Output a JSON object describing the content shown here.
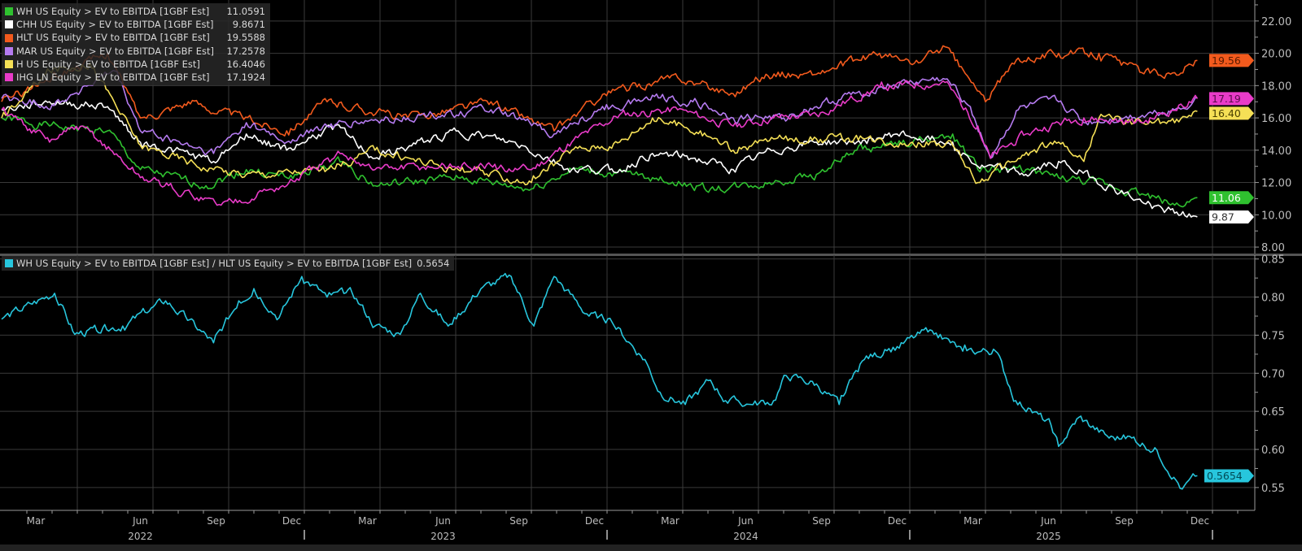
{
  "colors": {
    "WH": "#2fc12f",
    "CHH": "#ffffff",
    "HLT": "#f25a1d",
    "MAR": "#b57bf0",
    "H": "#f5e056",
    "IHG": "#e93bc8",
    "ratio": "#27c6dd",
    "grid": "#3a3a3a",
    "axis": "#9a9a9a"
  },
  "chart_data": [
    {
      "type": "line",
      "title": "EV to EBITDA [1GBF Est]",
      "time_unit": "months since Jan 2022",
      "ylim": [
        7.6,
        23.3
      ],
      "yticks": [
        8,
        10,
        12,
        14,
        16,
        18,
        20,
        22
      ],
      "ytick_labels": [
        "8.00",
        "10.00",
        "12.00",
        "14.00",
        "16.00",
        "18.00",
        "20.00",
        "22.00"
      ],
      "grid": true,
      "legend_placement": "top-left",
      "series": [
        {
          "key": "WH",
          "name": "WH US Equity > EV to EBITDA [1GBF Est]",
          "last": "11.0591",
          "tag": "11.06",
          "tag_text": "#ffffff",
          "points": [
            [
              0,
              16
            ],
            [
              1.9,
              15.5
            ],
            [
              4.2,
              15.2
            ],
            [
              5.5,
              12.8
            ],
            [
              8.1,
              11.8
            ],
            [
              9.7,
              12.8
            ],
            [
              11.3,
              12.3
            ],
            [
              13.5,
              13.3
            ],
            [
              14.8,
              11.8
            ],
            [
              18.1,
              12.3
            ],
            [
              21,
              11.6
            ],
            [
              22.6,
              12.8
            ],
            [
              25.8,
              12.3
            ],
            [
              28.1,
              11.6
            ],
            [
              29.7,
              11.8
            ],
            [
              32.3,
              12.5
            ],
            [
              33.9,
              14
            ],
            [
              35.5,
              14.3
            ],
            [
              37.7,
              15
            ],
            [
              38.7,
              12.8
            ],
            [
              40.6,
              12.8
            ],
            [
              41.9,
              12.3
            ],
            [
              43.9,
              11.8
            ],
            [
              45.2,
              11.3
            ],
            [
              46.5,
              10.6
            ],
            [
              47.4,
              11.06
            ]
          ]
        },
        {
          "key": "CHH",
          "name": "CHH US Equity > EV to EBITDA [1GBF Est]",
          "last": "9.8671",
          "tag": "9.87",
          "tag_text": "#333333",
          "points": [
            [
              0,
              16.5
            ],
            [
              1.9,
              17
            ],
            [
              4.2,
              16.7
            ],
            [
              5.5,
              14.5
            ],
            [
              8.4,
              13.3
            ],
            [
              9.7,
              15
            ],
            [
              11.3,
              14
            ],
            [
              13.2,
              15.5
            ],
            [
              14.8,
              13.5
            ],
            [
              18.1,
              15.2
            ],
            [
              20.6,
              14.3
            ],
            [
              22.6,
              12.8
            ],
            [
              24.5,
              12.8
            ],
            [
              25.8,
              13.8
            ],
            [
              27.4,
              13.5
            ],
            [
              29,
              12.8
            ],
            [
              30.6,
              14
            ],
            [
              32.3,
              14.5
            ],
            [
              33.9,
              14.5
            ],
            [
              35.5,
              15
            ],
            [
              37.7,
              14.5
            ],
            [
              38.7,
              13
            ],
            [
              40.6,
              12.5
            ],
            [
              41.9,
              13.3
            ],
            [
              43.2,
              12.3
            ],
            [
              45.2,
              10.8
            ],
            [
              46.5,
              10.1
            ],
            [
              47.4,
              9.87
            ]
          ]
        },
        {
          "key": "HLT",
          "name": "HLT US Equity > EV to EBITDA [1GBF Est]",
          "last": "19.5588",
          "tag": "19.56",
          "tag_text": "#5a1a00",
          "points": [
            [
              0,
              17
            ],
            [
              2,
              18.5
            ],
            [
              4.2,
              20
            ],
            [
              5.5,
              16
            ],
            [
              7.4,
              17
            ],
            [
              11.3,
              15.2
            ],
            [
              12.9,
              17
            ],
            [
              16.1,
              16
            ],
            [
              19.4,
              17
            ],
            [
              21.9,
              15.2
            ],
            [
              23.9,
              17.5
            ],
            [
              26.8,
              18.5
            ],
            [
              29,
              17.5
            ],
            [
              30.3,
              18.7
            ],
            [
              32.3,
              18.7
            ],
            [
              34.8,
              20
            ],
            [
              36.1,
              19.3
            ],
            [
              37.4,
              20.4
            ],
            [
              39,
              17
            ],
            [
              40.3,
              19.7
            ],
            [
              41.9,
              20
            ],
            [
              43.5,
              20
            ],
            [
              45.2,
              18.8
            ],
            [
              46.5,
              18.8
            ],
            [
              47.4,
              19.56
            ]
          ]
        },
        {
          "key": "MAR",
          "name": "MAR US Equity > EV to EBITDA [1GBF Est]",
          "last": "17.2578",
          "tag": null,
          "points": [
            [
              0,
              17.2
            ],
            [
              2,
              16.8
            ],
            [
              4.5,
              18.9
            ],
            [
              5.5,
              15.2
            ],
            [
              8.4,
              13.8
            ],
            [
              9.7,
              15.7
            ],
            [
              11.3,
              14.5
            ],
            [
              12.9,
              15.5
            ],
            [
              16.1,
              16
            ],
            [
              19.4,
              16.5
            ],
            [
              21.9,
              15
            ],
            [
              23.9,
              16.5
            ],
            [
              25.8,
              17.4
            ],
            [
              27.4,
              17
            ],
            [
              29,
              16
            ],
            [
              31,
              16
            ],
            [
              32.3,
              16.7
            ],
            [
              34.8,
              17.9
            ],
            [
              37.4,
              18.4
            ],
            [
              38.4,
              16.7
            ],
            [
              39.2,
              13.5
            ],
            [
              40.3,
              16.5
            ],
            [
              41.9,
              17
            ],
            [
              42.9,
              15.7
            ],
            [
              44.5,
              16
            ],
            [
              46.5,
              16.5
            ],
            [
              47.4,
              17.26
            ]
          ]
        },
        {
          "key": "H",
          "name": "H US Equity > EV to EBITDA [1GBF Est]",
          "last": "16.4046",
          "tag": "16.40",
          "tag_text": "#4a4000",
          "points": [
            [
              0,
              16
            ],
            [
              1.9,
              18.9
            ],
            [
              3.5,
              19.4
            ],
            [
              5.5,
              14.3
            ],
            [
              8.4,
              12.8
            ],
            [
              9.7,
              12.5
            ],
            [
              12.9,
              12.8
            ],
            [
              14.8,
              14
            ],
            [
              18.1,
              12.8
            ],
            [
              21,
              12
            ],
            [
              22.6,
              14
            ],
            [
              24.5,
              14.5
            ],
            [
              25.8,
              16
            ],
            [
              27.7,
              15.2
            ],
            [
              29,
              14
            ],
            [
              30.6,
              14.7
            ],
            [
              32.3,
              14.7
            ],
            [
              34.2,
              14.7
            ],
            [
              36.1,
              14.5
            ],
            [
              37.7,
              14.3
            ],
            [
              38.7,
              12
            ],
            [
              40.3,
              13.5
            ],
            [
              41.9,
              14.5
            ],
            [
              42.9,
              13.3
            ],
            [
              43.5,
              16
            ],
            [
              45.2,
              15.7
            ],
            [
              46.5,
              15.7
            ],
            [
              47.4,
              16.4
            ]
          ]
        },
        {
          "key": "IHG",
          "name": "IHG LN Equity > EV to EBITDA [1GBF Est]",
          "last": "17.1924",
          "tag": "17.19",
          "tag_text": "#5a0a4a",
          "points": [
            [
              0,
              16.5
            ],
            [
              1.9,
              14.5
            ],
            [
              3.2,
              15.5
            ],
            [
              5.5,
              12.3
            ],
            [
              8.7,
              10.6
            ],
            [
              11.3,
              11.8
            ],
            [
              13.5,
              13.8
            ],
            [
              14.8,
              12.8
            ],
            [
              18.1,
              13
            ],
            [
              21,
              12.8
            ],
            [
              22.6,
              14.5
            ],
            [
              24.5,
              16.2
            ],
            [
              26.8,
              16.5
            ],
            [
              29,
              15.5
            ],
            [
              30.6,
              16
            ],
            [
              32.3,
              16.2
            ],
            [
              34.8,
              17.9
            ],
            [
              37.4,
              18.2
            ],
            [
              38.7,
              15.5
            ],
            [
              39.2,
              13.5
            ],
            [
              40.6,
              15
            ],
            [
              41.9,
              15.7
            ],
            [
              42.9,
              16
            ],
            [
              45.2,
              15.7
            ],
            [
              47.4,
              17.19
            ]
          ]
        }
      ]
    },
    {
      "type": "line",
      "title": "WH US Equity > EV to EBITDA [1GBF Est] / HLT US Equity > EV to EBITDA [1GBF Est]",
      "time_unit": "months since Jan 2022",
      "ylim": [
        0.52,
        0.855
      ],
      "yticks": [
        0.55,
        0.6,
        0.65,
        0.7,
        0.75,
        0.8,
        0.85
      ],
      "ytick_labels": [
        "0.55",
        "0.60",
        "0.65",
        "0.70",
        "0.75",
        "0.80",
        "0.85"
      ],
      "grid": true,
      "legend_placement": "top-left",
      "series": [
        {
          "key": "ratio",
          "name": "WH US Equity > EV to EBITDA [1GBF Est] / HLT US Equity > EV to EBITDA [1GBF Est]",
          "last": "0.5654",
          "tag": "0.5654",
          "tag_text": "#004a55",
          "points": [
            [
              0,
              0.771
            ],
            [
              2.1,
              0.805
            ],
            [
              2.9,
              0.751
            ],
            [
              4.8,
              0.762
            ],
            [
              6.5,
              0.795
            ],
            [
              8.4,
              0.74
            ],
            [
              9.4,
              0.795
            ],
            [
              10,
              0.811
            ],
            [
              11,
              0.773
            ],
            [
              11.9,
              0.827
            ],
            [
              12.9,
              0.8
            ],
            [
              13.9,
              0.805
            ],
            [
              14.8,
              0.762
            ],
            [
              15.8,
              0.751
            ],
            [
              16.6,
              0.805
            ],
            [
              17.7,
              0.762
            ],
            [
              19,
              0.811
            ],
            [
              20.2,
              0.827
            ],
            [
              21.1,
              0.762
            ],
            [
              21.9,
              0.827
            ],
            [
              23.2,
              0.778
            ],
            [
              24.2,
              0.767
            ],
            [
              25.5,
              0.718
            ],
            [
              26.1,
              0.675
            ],
            [
              27.1,
              0.659
            ],
            [
              28.1,
              0.691
            ],
            [
              28.7,
              0.664
            ],
            [
              29.7,
              0.659
            ],
            [
              30.6,
              0.664
            ],
            [
              31.1,
              0.697
            ],
            [
              32.3,
              0.686
            ],
            [
              33.2,
              0.659
            ],
            [
              34.2,
              0.718
            ],
            [
              35.5,
              0.735
            ],
            [
              36.8,
              0.757
            ],
            [
              38.1,
              0.729
            ],
            [
              39.4,
              0.729
            ],
            [
              40.2,
              0.664
            ],
            [
              41.6,
              0.632
            ],
            [
              41.9,
              0.604
            ],
            [
              42.7,
              0.642
            ],
            [
              43.9,
              0.615
            ],
            [
              44.8,
              0.615
            ],
            [
              45.8,
              0.599
            ],
            [
              46.8,
              0.548
            ],
            [
              47.4,
              0.5654
            ]
          ]
        }
      ]
    }
  ],
  "x_axis": {
    "months": [
      "Mar",
      "Jun",
      "Sep",
      "Dec",
      "Mar",
      "Jun",
      "Sep",
      "Dec",
      "Mar",
      "Jun",
      "Sep",
      "Dec",
      "Mar",
      "Jun",
      "Sep",
      "Dec"
    ],
    "month_index": [
      2,
      5,
      8,
      11,
      14,
      17,
      20,
      23,
      26,
      29,
      32,
      35,
      38,
      41,
      44,
      47
    ],
    "years": [
      "2022",
      "2023",
      "2024",
      "2025"
    ]
  }
}
